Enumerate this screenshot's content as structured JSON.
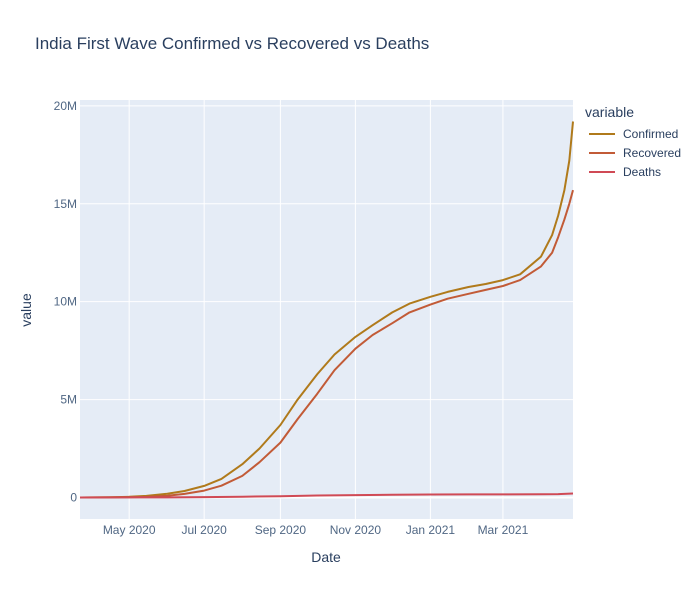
{
  "title": "India First Wave Confirmed vs Recovered vs Deaths",
  "chart_data": {
    "type": "line",
    "title": "India First Wave Confirmed vs Recovered vs Deaths",
    "xlabel": "Date",
    "ylabel": "value",
    "legend_title": "variable",
    "legend_placement": "right",
    "grid": true,
    "x_range": [
      "2020-03-22",
      "2021-04-27"
    ],
    "y_range": [
      -1100000,
      20300000
    ],
    "x_ticks": [
      {
        "date": "2020-05-01",
        "label": "May 2020"
      },
      {
        "date": "2020-07-01",
        "label": "Jul 2020"
      },
      {
        "date": "2020-09-01",
        "label": "Sep 2020"
      },
      {
        "date": "2020-11-01",
        "label": "Nov 2020"
      },
      {
        "date": "2021-01-01",
        "label": "Jan 2021"
      },
      {
        "date": "2021-03-01",
        "label": "Mar 2021"
      }
    ],
    "y_ticks": [
      {
        "value": 0,
        "label": "0"
      },
      {
        "value": 5000000,
        "label": "5M"
      },
      {
        "value": 10000000,
        "label": "10M"
      },
      {
        "value": 15000000,
        "label": "15M"
      },
      {
        "value": 20000000,
        "label": "20M"
      }
    ],
    "series": [
      {
        "name": "Confirmed",
        "color": "#b07a1b",
        "points": [
          [
            "2020-03-22",
            0
          ],
          [
            "2020-04-15",
            12000
          ],
          [
            "2020-05-01",
            35000
          ],
          [
            "2020-05-15",
            80000
          ],
          [
            "2020-06-01",
            190000
          ],
          [
            "2020-06-15",
            330000
          ],
          [
            "2020-07-01",
            590000
          ],
          [
            "2020-07-15",
            950000
          ],
          [
            "2020-08-01",
            1700000
          ],
          [
            "2020-08-15",
            2500000
          ],
          [
            "2020-09-01",
            3700000
          ],
          [
            "2020-09-15",
            5000000
          ],
          [
            "2020-10-01",
            6300000
          ],
          [
            "2020-10-15",
            7300000
          ],
          [
            "2020-11-01",
            8200000
          ],
          [
            "2020-11-15",
            8800000
          ],
          [
            "2020-12-01",
            9450000
          ],
          [
            "2020-12-15",
            9900000
          ],
          [
            "2021-01-01",
            10250000
          ],
          [
            "2021-01-15",
            10500000
          ],
          [
            "2021-02-01",
            10750000
          ],
          [
            "2021-02-15",
            10900000
          ],
          [
            "2021-03-01",
            11100000
          ],
          [
            "2021-03-15",
            11400000
          ],
          [
            "2021-04-01",
            12300000
          ],
          [
            "2021-04-10",
            13400000
          ],
          [
            "2021-04-15",
            14400000
          ],
          [
            "2021-04-20",
            15700000
          ],
          [
            "2021-04-24",
            17200000
          ],
          [
            "2021-04-27",
            19200000
          ]
        ]
      },
      {
        "name": "Recovered",
        "color": "#c25b37",
        "points": [
          [
            "2020-03-22",
            0
          ],
          [
            "2020-04-15",
            3000
          ],
          [
            "2020-05-01",
            10000
          ],
          [
            "2020-05-15",
            30000
          ],
          [
            "2020-06-01",
            90000
          ],
          [
            "2020-06-15",
            180000
          ],
          [
            "2020-07-01",
            350000
          ],
          [
            "2020-07-15",
            600000
          ],
          [
            "2020-08-01",
            1100000
          ],
          [
            "2020-08-15",
            1800000
          ],
          [
            "2020-09-01",
            2800000
          ],
          [
            "2020-09-15",
            4000000
          ],
          [
            "2020-10-01",
            5300000
          ],
          [
            "2020-10-15",
            6500000
          ],
          [
            "2020-11-01",
            7600000
          ],
          [
            "2020-11-15",
            8300000
          ],
          [
            "2020-12-01",
            8900000
          ],
          [
            "2020-12-15",
            9450000
          ],
          [
            "2021-01-01",
            9850000
          ],
          [
            "2021-01-15",
            10150000
          ],
          [
            "2021-02-01",
            10400000
          ],
          [
            "2021-02-15",
            10600000
          ],
          [
            "2021-03-01",
            10800000
          ],
          [
            "2021-03-15",
            11100000
          ],
          [
            "2021-04-01",
            11800000
          ],
          [
            "2021-04-10",
            12500000
          ],
          [
            "2021-04-15",
            13300000
          ],
          [
            "2021-04-20",
            14200000
          ],
          [
            "2021-04-24",
            15000000
          ],
          [
            "2021-04-27",
            15700000
          ]
        ]
      },
      {
        "name": "Deaths",
        "color": "#d04a55",
        "points": [
          [
            "2020-03-22",
            0
          ],
          [
            "2020-05-01",
            1200
          ],
          [
            "2020-06-01",
            5500
          ],
          [
            "2020-07-01",
            17500
          ],
          [
            "2020-08-01",
            37000
          ],
          [
            "2020-09-01",
            66000
          ],
          [
            "2020-10-01",
            99000
          ],
          [
            "2020-11-01",
            122000
          ],
          [
            "2020-12-01",
            138000
          ],
          [
            "2021-01-01",
            149000
          ],
          [
            "2021-02-01",
            154000
          ],
          [
            "2021-03-01",
            157000
          ],
          [
            "2021-04-01",
            163000
          ],
          [
            "2021-04-15",
            174000
          ],
          [
            "2021-04-27",
            200000
          ]
        ]
      }
    ]
  }
}
